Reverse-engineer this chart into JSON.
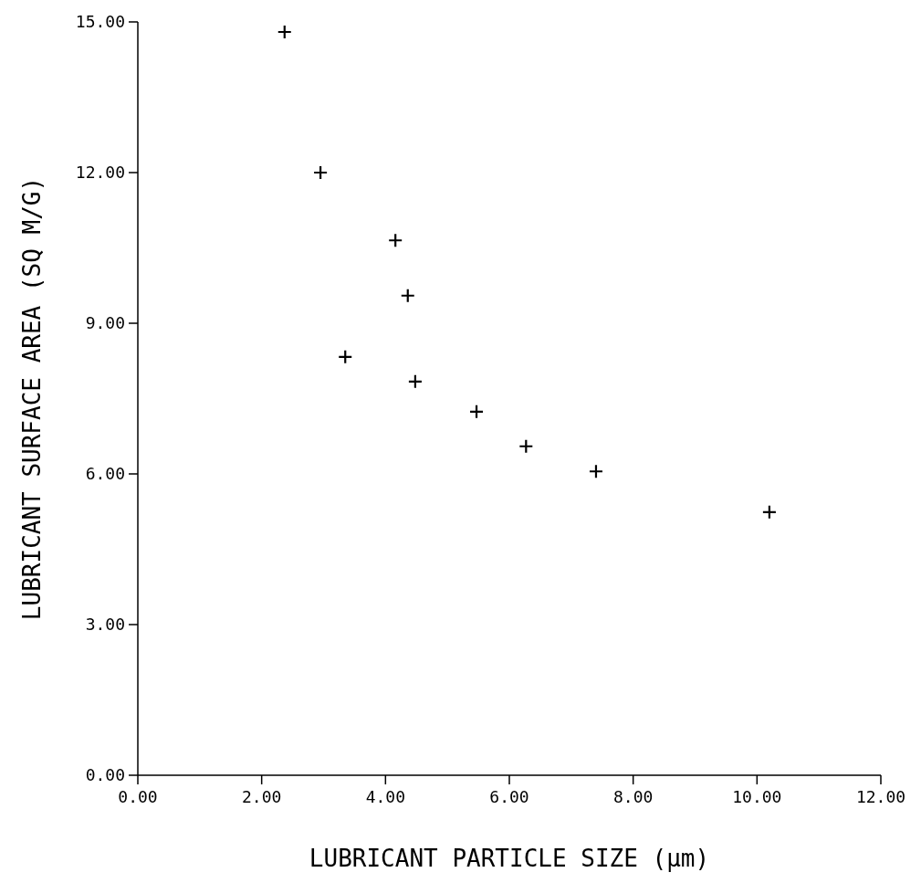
{
  "chart_data": {
    "type": "scatter",
    "xlabel": "LUBRICANT PARTICLE SIZE (μm)",
    "ylabel": "LUBRICANT SURFACE AREA (SQ M/G)",
    "x": [
      2.37,
      2.95,
      4.16,
      4.36,
      3.35,
      4.48,
      5.47,
      6.27,
      7.4,
      10.2
    ],
    "values": [
      14.8,
      12.0,
      10.65,
      9.55,
      8.33,
      7.84,
      7.24,
      6.55,
      6.05,
      5.24
    ],
    "color": "#000000",
    "marker": "cross",
    "grid": false,
    "xlim": [
      0,
      12
    ],
    "ylim": [
      0,
      15
    ],
    "xticks": [
      {
        "value": 0,
        "label": "0.00"
      },
      {
        "value": 2,
        "label": "2.00"
      },
      {
        "value": 4,
        "label": "4.00"
      },
      {
        "value": 6,
        "label": "6.00"
      },
      {
        "value": 8,
        "label": "8.00"
      },
      {
        "value": 10,
        "label": "10.00"
      },
      {
        "value": 12,
        "label": "12.00"
      }
    ],
    "yticks": [
      {
        "value": 0,
        "label": "0.00"
      },
      {
        "value": 3,
        "label": "3.00"
      },
      {
        "value": 6,
        "label": "6.00"
      },
      {
        "value": 9,
        "label": "9.00"
      },
      {
        "value": 12,
        "label": "12.00"
      },
      {
        "value": 15,
        "label": "15.00"
      }
    ]
  }
}
